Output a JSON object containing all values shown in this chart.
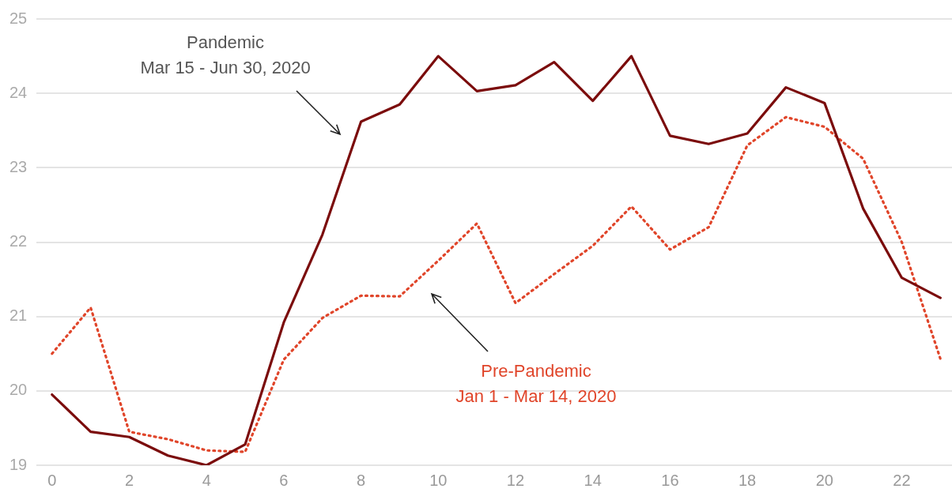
{
  "chart_data": {
    "type": "line",
    "x": [
      0,
      1,
      2,
      3,
      4,
      5,
      6,
      7,
      8,
      9,
      10,
      11,
      12,
      13,
      14,
      15,
      16,
      17,
      18,
      19,
      20,
      21,
      22,
      23
    ],
    "series": [
      {
        "color": "#7b0c0c",
        "line_style": "solid",
        "values": [
          19.95,
          19.45,
          19.38,
          19.13,
          19.0,
          19.28,
          20.92,
          22.1,
          23.62,
          23.85,
          24.5,
          24.03,
          24.11,
          24.42,
          23.9,
          24.5,
          23.43,
          23.32,
          23.46,
          24.08,
          23.87,
          22.45,
          21.52,
          21.25
        ]
      },
      {
        "color": "#e0452a",
        "line_style": "dotted",
        "values": [
          20.5,
          21.12,
          19.45,
          19.35,
          19.2,
          19.18,
          20.42,
          20.98,
          21.28,
          21.27,
          21.75,
          22.25,
          21.18,
          21.57,
          21.95,
          22.48,
          21.9,
          22.2,
          23.3,
          23.68,
          23.55,
          23.12,
          22.0,
          20.43
        ]
      }
    ],
    "xlim": [
      -0.4,
      23.3
    ],
    "xticks": [
      0,
      2,
      4,
      6,
      8,
      10,
      12,
      14,
      16,
      18,
      20,
      22
    ],
    "ylim": [
      19,
      25
    ],
    "yticks": [
      19,
      20,
      21,
      22,
      23,
      24,
      25
    ],
    "grid": "y",
    "legend": false,
    "marker": "none",
    "annotations": [
      "Pandemic\nMar 15 - Jun 30, 2020",
      "Pre-Pandemic\nJan 1 - Mar 14, 2020"
    ]
  }
}
